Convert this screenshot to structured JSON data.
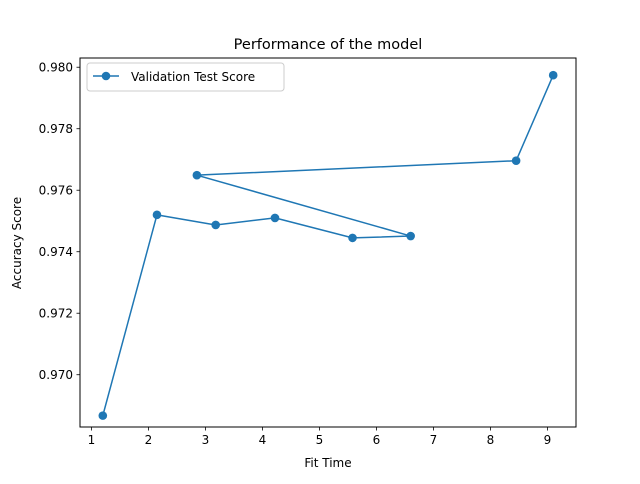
{
  "chart_data": {
    "type": "line",
    "title": "Performance of the model",
    "xlabel": "Fit Time",
    "ylabel": "Accuracy Score",
    "xlim": [
      0.8,
      9.5
    ],
    "ylim": [
      0.9683,
      0.9803
    ],
    "xticks": [
      1,
      2,
      3,
      4,
      5,
      6,
      7,
      8,
      9
    ],
    "xtick_labels": [
      "1",
      "2",
      "3",
      "4",
      "5",
      "6",
      "7",
      "8",
      "9"
    ],
    "yticks": [
      0.97,
      0.972,
      0.974,
      0.976,
      0.978,
      0.98
    ],
    "ytick_labels": [
      "0.970",
      "0.972",
      "0.974",
      "0.976",
      "0.978",
      "0.980"
    ],
    "grid": false,
    "legend": "top-left",
    "series": [
      {
        "name": "Validation Test Score",
        "color": "#1f77b4",
        "marker": "circle",
        "x": [
          1.2,
          2.15,
          3.18,
          4.22,
          5.58,
          6.6,
          2.85,
          8.45,
          9.1
        ],
        "y": [
          0.96867,
          0.9752,
          0.97487,
          0.9751,
          0.97445,
          0.97451,
          0.97649,
          0.97696,
          0.97974
        ]
      }
    ]
  }
}
